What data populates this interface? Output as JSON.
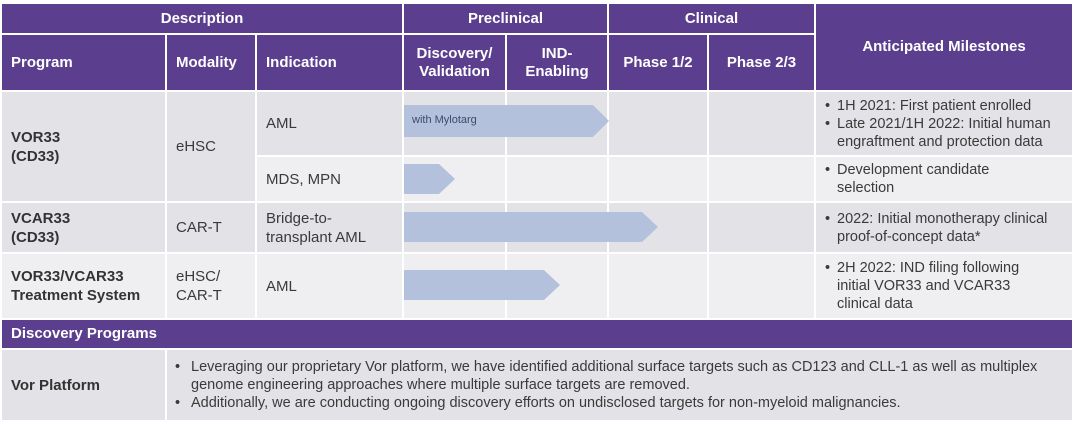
{
  "header": {
    "group_description": "Description",
    "group_preclinical": "Preclinical",
    "group_clinical": "Clinical",
    "anticipated_milestones": "Anticipated Milestones",
    "program": "Program",
    "modality": "Modality",
    "indication": "Indication",
    "discovery_validation": "Discovery/ Validation",
    "ind_enabling": "IND- Enabling",
    "phase_1_2": "Phase 1/2",
    "phase_2_3": "Phase 2/3"
  },
  "rows": {
    "vor33_program": "VOR33 (CD33)",
    "vor33_modality": "eHSC",
    "vor33_aml_indication": "AML",
    "vor33_aml_bar_label": "with Mylotarg",
    "vor33_aml_bar_progress": 0.5,
    "vor33_aml_milestone_1": "1H 2021: First patient enrolled",
    "vor33_aml_milestone_2": "Late 2021/1H 2022: Initial human engraftment and protection data",
    "vor33_mds_indication": "MDS, MPN",
    "vor33_mds_bar_progress": 0.125,
    "vor33_mds_milestone_1": "Development candidate selection",
    "vcar33_program": "VCAR33 (CD33)",
    "vcar33_modality": "CAR-T",
    "vcar33_indication": "Bridge-to- transplant AML",
    "vcar33_bar_progress": 0.62,
    "vcar33_milestone_1": "2022: Initial monotherapy clinical proof-of-concept data*",
    "system_program": "VOR33/VCAR33 Treatment System",
    "system_modality": "eHSC/ CAR-T",
    "system_indication": "AML",
    "system_bar_progress": 0.38,
    "system_milestone_1": "2H 2022: IND filing following initial VOR33 and VCAR33 clinical data"
  },
  "discovery": {
    "section_title": "Discovery Programs",
    "platform_label": "Vor Platform",
    "bullet_1": "Leveraging our proprietary Vor platform, we have identified additional surface targets such as CD123 and CLL-1 as well as multiplex genome engineering approaches where multiple surface targets are removed.",
    "bullet_2": "Additionally, we are conducting ongoing discovery efforts on undisclosed targets for non-myeloid malignancies."
  },
  "colors": {
    "header_purple": "#5b3f8e",
    "row_gray_dark": "#e3e3e7",
    "row_gray_light": "#efeff2",
    "bar_blue": "#b4c1dd"
  }
}
